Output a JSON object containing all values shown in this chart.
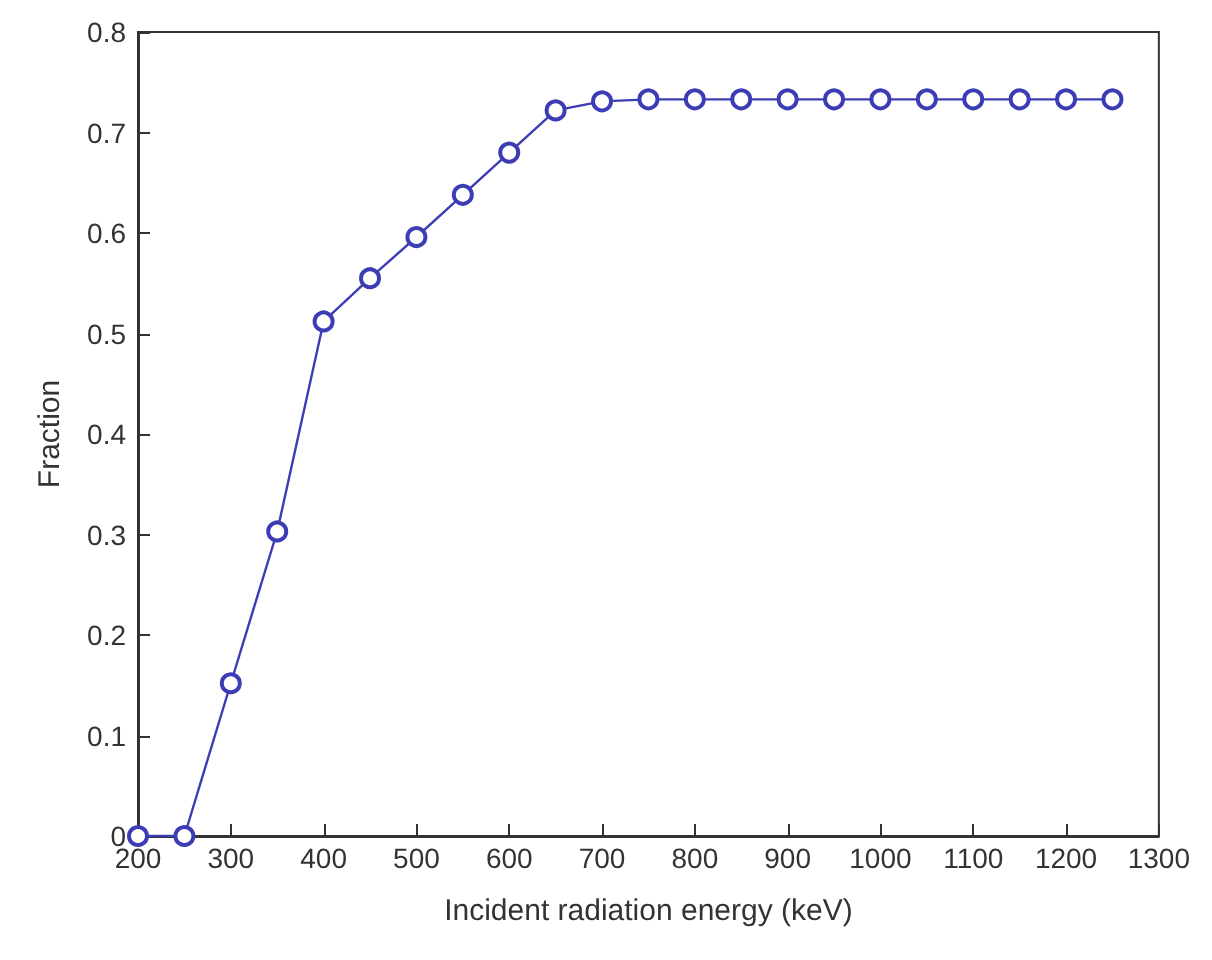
{
  "chart_data": {
    "type": "line",
    "xlabel": "Incident radiation energy (keV)",
    "ylabel": "Fraction",
    "x": [
      200,
      250,
      300,
      350,
      400,
      450,
      500,
      550,
      600,
      650,
      700,
      750,
      800,
      850,
      900,
      950,
      1000,
      1050,
      1100,
      1150,
      1200,
      1250
    ],
    "series": [
      {
        "color": "#3c3cb4",
        "values": [
          0,
          0,
          0.152,
          0.303,
          0.512,
          0.555,
          0.596,
          0.638,
          0.68,
          0.722,
          0.731,
          0.733,
          0.733,
          0.733,
          0.733,
          0.733,
          0.733,
          0.733,
          0.733,
          0.733,
          0.733,
          0.733
        ]
      }
    ],
    "xlim": [
      200,
      1300
    ],
    "xticks": [
      200,
      300,
      400,
      500,
      600,
      700,
      800,
      900,
      1000,
      1100,
      1200,
      1300
    ],
    "ylim": [
      0,
      0.8
    ],
    "yticks": [
      0,
      0.1,
      0.2,
      0.3,
      0.4,
      0.5,
      0.6,
      0.7,
      0.8
    ],
    "grid": false,
    "marker": "circle",
    "line_style": "solid"
  }
}
